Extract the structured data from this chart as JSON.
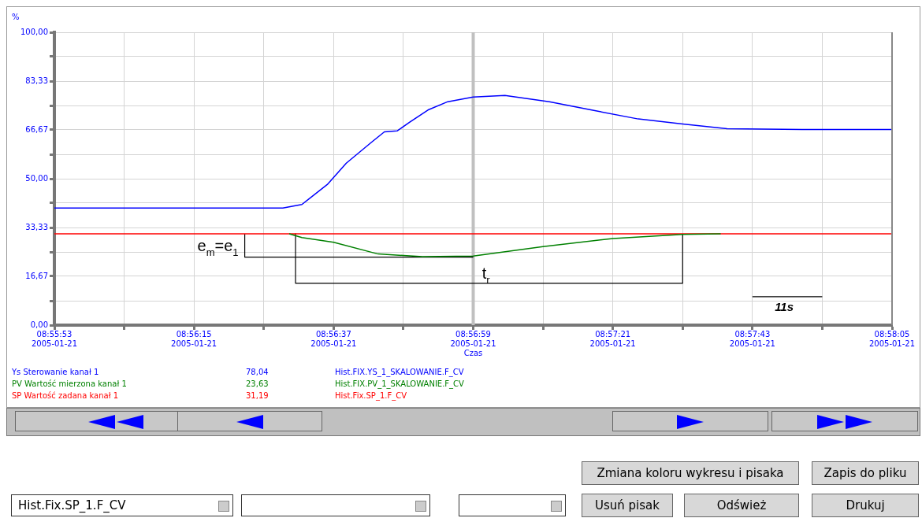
{
  "chart_data": {
    "type": "line",
    "xlabel": "Czas",
    "ylabel": "%",
    "xlim": [
      "2005-01-21T08:55:53",
      "2005-01-21T08:58:05"
    ],
    "ylim": [
      0,
      100
    ],
    "xticks": [
      {
        "value": "2005-01-21T08:55:53",
        "label": "08:55:53\n2005-01-21"
      },
      {
        "value": "2005-01-21T08:56:04",
        "label": null
      },
      {
        "value": "2005-01-21T08:56:15",
        "label": "08:56:15\n2005-01-21"
      },
      {
        "value": "2005-01-21T08:56:26",
        "label": null
      },
      {
        "value": "2005-01-21T08:56:37",
        "label": "08:56:37\n2005-01-21"
      },
      {
        "value": "2005-01-21T08:56:48",
        "label": null
      },
      {
        "value": "2005-01-21T08:56:59",
        "label": "08:56:59\n2005-01-21"
      },
      {
        "value": "2005-01-21T08:57:10",
        "label": null
      },
      {
        "value": "2005-01-21T08:57:21",
        "label": "08:57:21\n2005-01-21"
      },
      {
        "value": "2005-01-21T08:57:32",
        "label": null
      },
      {
        "value": "2005-01-21T08:57:43",
        "label": "08:57:43\n2005-01-21"
      },
      {
        "value": "2005-01-21T08:57:54",
        "label": null
      },
      {
        "value": "2005-01-21T08:58:05",
        "label": "08:58:05\n2005-01-21"
      }
    ],
    "yticks": [
      {
        "value": 0,
        "label": "0,00"
      },
      {
        "value": 8.333,
        "label": null
      },
      {
        "value": 16.67,
        "label": "16,67"
      },
      {
        "value": 25,
        "label": null
      },
      {
        "value": 33.33,
        "label": "33,33"
      },
      {
        "value": 41.67,
        "label": null
      },
      {
        "value": 50,
        "label": "50,00"
      },
      {
        "value": 58.33,
        "label": null
      },
      {
        "value": 66.67,
        "label": "66,67"
      },
      {
        "value": 75,
        "label": null
      },
      {
        "value": 83.33,
        "label": "83,33"
      },
      {
        "value": 91.67,
        "label": null
      },
      {
        "value": 100,
        "label": "100,00"
      }
    ],
    "grid": true,
    "legend": "bottom left",
    "series": [
      {
        "name": "Ys Sterowanie kanał 1",
        "color": "#0000ff",
        "x": [
          "2005-01-21T08:55:53",
          "2005-01-21T08:56:29",
          "2005-01-21T08:56:32",
          "2005-01-21T08:56:36",
          "2005-01-21T08:56:39",
          "2005-01-21T08:56:43",
          "2005-01-21T08:56:45",
          "2005-01-21T08:56:47",
          "2005-01-21T08:56:49",
          "2005-01-21T08:56:52",
          "2005-01-21T08:56:55",
          "2005-01-21T08:56:59",
          "2005-01-21T08:57:04",
          "2005-01-21T08:57:11",
          "2005-01-21T08:57:18",
          "2005-01-21T08:57:25",
          "2005-01-21T08:57:32",
          "2005-01-21T08:57:39",
          "2005-01-21T08:57:51",
          "2005-01-21T08:58:05"
        ],
        "values": [
          40,
          40,
          41.2,
          48.0,
          55.3,
          62.5,
          66.0,
          66.3,
          69.3,
          73.6,
          76.3,
          77.9,
          78.4,
          76.3,
          73.3,
          70.4,
          68.7,
          67.1,
          66.8,
          66.8
        ]
      },
      {
        "name": "PV Wartość mierzona kanał 1",
        "color": "#008000",
        "x": [
          "2005-01-21T08:56:30",
          "2005-01-21T08:56:32",
          "2005-01-21T08:56:37",
          "2005-01-21T08:56:44",
          "2005-01-21T08:56:51",
          "2005-01-21T08:56:59",
          "2005-01-21T08:57:10",
          "2005-01-21T08:57:21",
          "2005-01-21T08:57:32",
          "2005-01-21T08:57:38"
        ],
        "values": [
          31.2,
          29.9,
          28.3,
          24.3,
          23.4,
          23.6,
          26.8,
          29.6,
          31.0,
          31.2
        ]
      },
      {
        "name": "SP  Wartość zadana kanał 1",
        "color": "#ff0000",
        "x": [
          "2005-01-21T08:55:53",
          "2005-01-21T08:58:05"
        ],
        "values": [
          31.2,
          31.2
        ]
      },
      {
        "color": "#000000",
        "x": [
          "2005-01-21T08:56:59",
          "2005-01-21T08:56:23",
          "2005-01-21T08:56:23"
        ],
        "values": [
          23.2,
          23.2,
          31.2
        ]
      },
      {
        "color": "#000000",
        "x": [
          "2005-01-21T08:56:31",
          "2005-01-21T08:56:31",
          "2005-01-21T08:57:32",
          "2005-01-21T08:57:32"
        ],
        "values": [
          31.2,
          14.3,
          14.3,
          31.2
        ]
      },
      {
        "color": "#000000",
        "x": [
          "2005-01-21T08:57:43",
          "2005-01-21T08:57:54"
        ],
        "values": [
          9.7,
          9.7
        ]
      }
    ],
    "ref_lines": [
      {
        "axis": "x",
        "value": "2005-01-21T08:56:59",
        "color": "#c0c0c0"
      }
    ],
    "annotations": [
      {
        "text": "e$_{m}$=e$_{1}$",
        "x": "2005-01-21T08:56:23",
        "y": 27.2
      },
      {
        "text": "t$_{r}$",
        "x": "2005-01-21T08:57:01",
        "y": 14.3
      },
      {
        "text": "11s",
        "x": "2005-01-21T08:57:48",
        "y": 9.7
      },
      "78,04",
      "Hist.FIX.YS_1_SKALOWANIE.F_CV",
      "23,63",
      "Hist.FIX.PV_1_SKALOWANIE.F_CV",
      "31,19",
      "Hist.Fix.SP_1.F_CV",
      "Zmiana koloru wykresu i pisaka",
      "Zapis do pliku",
      "Hist.Fix.SP_1.F_CV",
      "Usuń pisak",
      "Odśwież",
      "Drukuj"
    ]
  }
}
